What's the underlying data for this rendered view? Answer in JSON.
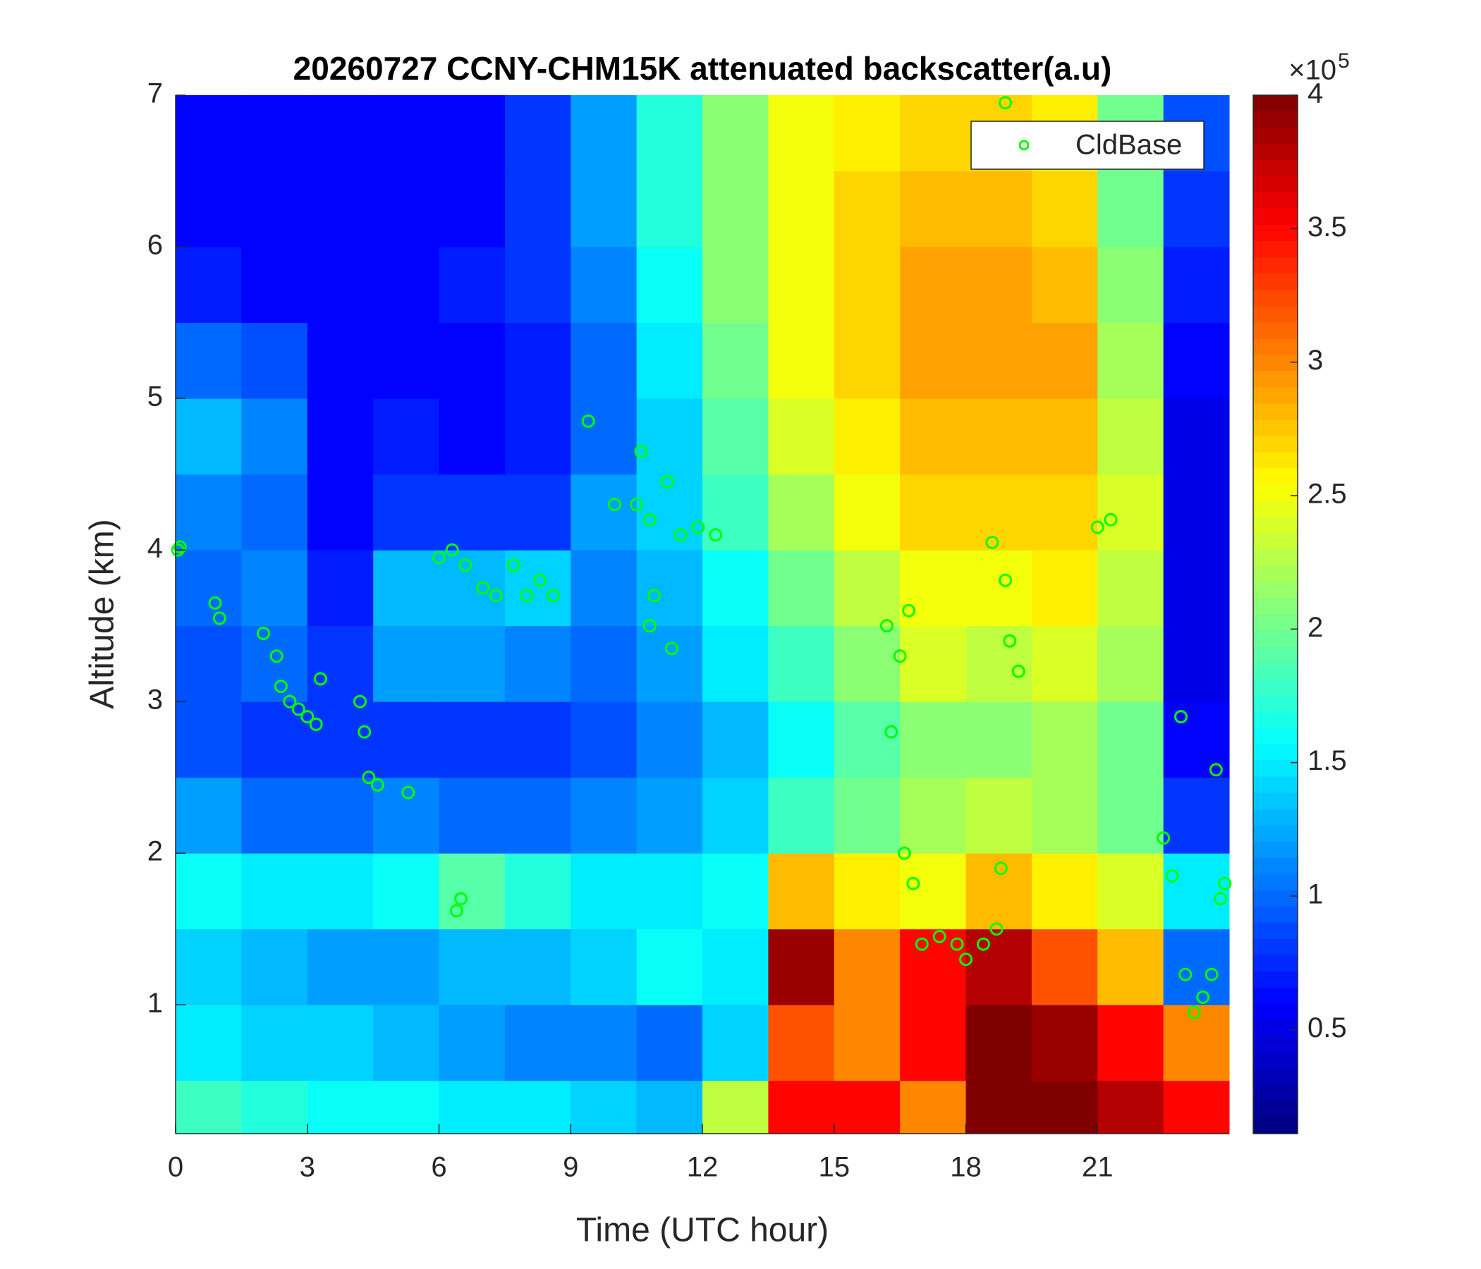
{
  "chart_data": {
    "type": "heatmap",
    "title": "20260727 CCNY-CHM15K attenuated backscatter(a.u)",
    "x_label": "Time (UTC hour)",
    "y_label": "Altitude (km)",
    "xlim": [
      0,
      24
    ],
    "ylim": [
      0.15,
      7
    ],
    "xticks": [
      0,
      3,
      6,
      9,
      12,
      15,
      18,
      21
    ],
    "yticks": [
      1,
      2,
      3,
      4,
      5,
      6,
      7
    ],
    "x_edges": [
      0,
      1.5,
      3,
      4.5,
      6,
      7.5,
      9,
      10.5,
      12,
      13.5,
      15,
      16.5,
      18,
      19.5,
      21,
      22.5,
      24
    ],
    "y_edges": [
      0.15,
      0.5,
      1,
      1.5,
      2,
      2.5,
      3,
      3.5,
      4,
      4.5,
      5,
      5.5,
      6,
      6.5,
      7
    ],
    "z": [
      [
        180000,
        170000,
        160000,
        160000,
        150000,
        150000,
        140000,
        130000,
        230000,
        350000,
        350000,
        300000,
        400000,
        400000,
        380000,
        350000
      ],
      [
        150000,
        140000,
        140000,
        130000,
        120000,
        110000,
        110000,
        100000,
        140000,
        320000,
        300000,
        350000,
        400000,
        390000,
        350000,
        300000
      ],
      [
        140000,
        130000,
        120000,
        120000,
        130000,
        130000,
        140000,
        160000,
        150000,
        390000,
        300000,
        350000,
        380000,
        320000,
        280000,
        100000
      ],
      [
        160000,
        150000,
        150000,
        160000,
        190000,
        170000,
        150000,
        150000,
        160000,
        280000,
        260000,
        250000,
        280000,
        260000,
        240000,
        150000
      ],
      [
        120000,
        100000,
        100000,
        110000,
        100000,
        100000,
        110000,
        120000,
        140000,
        180000,
        200000,
        220000,
        230000,
        220000,
        200000,
        80000
      ],
      [
        90000,
        80000,
        80000,
        80000,
        80000,
        80000,
        90000,
        110000,
        130000,
        160000,
        190000,
        210000,
        210000,
        220000,
        200000,
        60000
      ],
      [
        90000,
        100000,
        80000,
        120000,
        120000,
        110000,
        100000,
        120000,
        150000,
        180000,
        210000,
        240000,
        230000,
        240000,
        220000,
        50000
      ],
      [
        100000,
        110000,
        70000,
        130000,
        130000,
        140000,
        110000,
        130000,
        160000,
        200000,
        230000,
        250000,
        250000,
        260000,
        230000,
        50000
      ],
      [
        110000,
        100000,
        60000,
        80000,
        80000,
        80000,
        120000,
        140000,
        180000,
        220000,
        250000,
        270000,
        270000,
        270000,
        240000,
        50000
      ],
      [
        130000,
        110000,
        60000,
        70000,
        60000,
        70000,
        100000,
        140000,
        190000,
        240000,
        260000,
        280000,
        280000,
        280000,
        230000,
        50000
      ],
      [
        100000,
        90000,
        60000,
        60000,
        60000,
        70000,
        100000,
        150000,
        200000,
        250000,
        270000,
        290000,
        290000,
        290000,
        220000,
        60000
      ],
      [
        70000,
        60000,
        60000,
        60000,
        70000,
        80000,
        110000,
        160000,
        210000,
        250000,
        270000,
        290000,
        290000,
        280000,
        210000,
        70000
      ],
      [
        60000,
        60000,
        60000,
        60000,
        60000,
        80000,
        120000,
        170000,
        210000,
        250000,
        270000,
        280000,
        280000,
        270000,
        200000,
        80000
      ],
      [
        60000,
        60000,
        60000,
        60000,
        60000,
        80000,
        120000,
        170000,
        210000,
        250000,
        260000,
        270000,
        270000,
        260000,
        200000,
        90000
      ]
    ],
    "clim": [
      11000,
      400000
    ],
    "colormap": "jet",
    "cticks": [
      {
        "value": 50000,
        "label": "0.5"
      },
      {
        "value": 100000,
        "label": "1"
      },
      {
        "value": 150000,
        "label": "1.5"
      },
      {
        "value": 200000,
        "label": "2"
      },
      {
        "value": 250000,
        "label": "2.5"
      },
      {
        "value": 300000,
        "label": "3"
      },
      {
        "value": 350000,
        "label": "3.5"
      },
      {
        "value": 400000,
        "label": "4"
      }
    ],
    "colorbar_multiplier": "×10",
    "colorbar_exponent": "5",
    "legend": "upper right",
    "series": [
      {
        "name": "CldBase",
        "type": "scatter",
        "color": "#00ff00",
        "x": [
          0.05,
          0.1,
          0.9,
          1.0,
          2.0,
          2.3,
          2.4,
          2.6,
          2.8,
          3.0,
          3.2,
          3.3,
          4.2,
          4.3,
          4.4,
          4.6,
          5.3,
          6.0,
          6.3,
          6.6,
          7.0,
          7.3,
          7.7,
          8.0,
          8.3,
          8.6,
          6.5,
          6.4,
          9.4,
          10.0,
          10.5,
          10.6,
          10.8,
          11.2,
          10.9,
          10.8,
          11.3,
          11.5,
          11.9,
          12.3,
          16.2,
          16.5,
          16.7,
          16.3,
          16.6,
          16.8,
          17.0,
          17.4,
          17.8,
          18.0,
          18.4,
          18.7,
          18.6,
          18.9,
          19.0,
          19.2,
          18.8,
          18.9,
          21.0,
          21.3,
          22.5,
          22.7,
          22.9,
          23.0,
          23.2,
          23.4,
          23.6,
          23.8,
          23.9,
          23.7
        ],
        "y": [
          4.0,
          4.02,
          3.65,
          3.55,
          3.45,
          3.3,
          3.1,
          3.0,
          2.95,
          2.9,
          2.85,
          3.15,
          3.0,
          2.8,
          2.5,
          2.45,
          2.4,
          3.95,
          4.0,
          3.9,
          3.75,
          3.7,
          3.9,
          3.7,
          3.8,
          3.7,
          1.7,
          1.62,
          4.85,
          4.3,
          4.3,
          4.65,
          4.2,
          4.45,
          3.7,
          3.5,
          3.35,
          4.1,
          4.15,
          4.1,
          3.5,
          3.3,
          3.6,
          2.8,
          2.0,
          1.8,
          1.4,
          1.45,
          1.4,
          1.3,
          1.4,
          1.5,
          4.05,
          3.8,
          3.4,
          3.2,
          1.9,
          6.95,
          4.15,
          4.2,
          2.1,
          1.85,
          2.9,
          1.2,
          0.95,
          1.05,
          1.2,
          1.7,
          1.8,
          2.55
        ]
      }
    ]
  }
}
